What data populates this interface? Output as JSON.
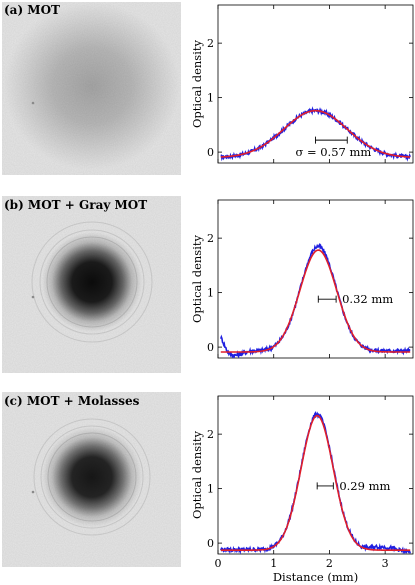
{
  "chart_data": [
    {
      "type": "line",
      "panel_label": "(a) MOT",
      "ylabel": "Optical density",
      "xlabel": "",
      "xlim": [
        0,
        3.5
      ],
      "ylim": [
        -0.2,
        2.7
      ],
      "xticks": [
        0,
        1,
        2,
        3
      ],
      "yticks": [
        0,
        1,
        2
      ],
      "show_xtick_labels": false,
      "image": {
        "peak_intensity": 0.28,
        "sigma_mm": 0.57,
        "cloud": "diffuse"
      },
      "data_params": {
        "amp": 0.86,
        "mu": 1.75,
        "sigma": 0.57,
        "offset": -0.1
      },
      "fit_params": {
        "amp": 0.86,
        "mu": 1.75,
        "sigma": 0.57,
        "offset": -0.1
      },
      "annotation": {
        "text": "σ = 0.57 mm",
        "bar_x": [
          1.75,
          2.32
        ],
        "bar_y": 0.22
      },
      "series": [
        {
          "name": "",
          "style": "data",
          "color": "#1f1fe0",
          "x": [
            0.05,
            0.5,
            1.0,
            1.25,
            1.5,
            1.75,
            2.0,
            2.25,
            2.5,
            3.0,
            3.45
          ],
          "y": [
            -0.1,
            -0.06,
            0.21,
            0.44,
            0.67,
            0.76,
            0.67,
            0.44,
            0.21,
            -0.06,
            -0.1
          ]
        },
        {
          "name": "",
          "style": "fit",
          "color": "#e01f2a",
          "x": [
            0.05,
            0.5,
            1.0,
            1.25,
            1.5,
            1.75,
            2.0,
            2.25,
            2.5,
            3.0,
            3.45
          ],
          "y": [
            -0.1,
            -0.06,
            0.21,
            0.44,
            0.67,
            0.76,
            0.67,
            0.44,
            0.21,
            -0.06,
            -0.1
          ]
        }
      ]
    },
    {
      "type": "line",
      "panel_label": "(b) MOT + Gray MOT",
      "ylabel": "Optical density",
      "xlabel": "",
      "xlim": [
        0,
        3.5
      ],
      "ylim": [
        -0.2,
        2.7
      ],
      "xticks": [
        0,
        1,
        2,
        3
      ],
      "yticks": [
        0,
        1,
        2
      ],
      "show_xtick_labels": false,
      "image": {
        "peak_intensity": 0.95,
        "sigma_mm": 0.32,
        "cloud": "dense"
      },
      "data_params": {
        "amp": 1.92,
        "mu": 1.8,
        "sigma": 0.32,
        "offset": -0.07
      },
      "fit_params": {
        "amp": 1.87,
        "mu": 1.8,
        "sigma": 0.33,
        "offset": -0.09
      },
      "annotation": {
        "text": "0.32 mm",
        "bar_x": [
          1.8,
          2.12
        ],
        "bar_y": 0.88
      },
      "series": [
        {
          "name": "",
          "style": "data",
          "color": "#1f1fe0",
          "x": [
            0.05,
            0.3,
            0.7,
            1.2,
            1.5,
            1.8,
            2.1,
            2.4,
            2.8,
            3.2,
            3.45
          ],
          "y": [
            0.18,
            -0.17,
            -0.07,
            0.12,
            1.06,
            1.85,
            1.06,
            0.12,
            -0.07,
            -0.07,
            -0.07
          ]
        },
        {
          "name": "",
          "style": "fit",
          "color": "#e01f2a",
          "x": [
            0.05,
            0.5,
            1.0,
            1.2,
            1.5,
            1.8,
            2.1,
            2.4,
            2.8,
            3.2,
            3.45
          ],
          "y": [
            -0.09,
            -0.09,
            -0.04,
            0.14,
            1.05,
            1.78,
            1.05,
            0.14,
            -0.08,
            -0.09,
            -0.09
          ]
        }
      ]
    },
    {
      "type": "line",
      "panel_label": "(c) MOT + Molasses",
      "ylabel": "Optical density",
      "xlabel": "Distance (mm)",
      "xlim": [
        0,
        3.5
      ],
      "ylim": [
        -0.2,
        2.7
      ],
      "xticks": [
        0,
        1,
        2,
        3
      ],
      "yticks": [
        0,
        1,
        2
      ],
      "show_xtick_labels": true,
      "image": {
        "peak_intensity": 0.9,
        "sigma_mm": 0.29,
        "cloud": "dense"
      },
      "data_params": {
        "amp": 2.49,
        "mu": 1.78,
        "sigma": 0.29,
        "offset": -0.12,
        "ripple": true
      },
      "fit_params": {
        "amp": 2.47,
        "mu": 1.78,
        "sigma": 0.29,
        "offset": -0.13
      },
      "annotation": {
        "text": "0.29 mm",
        "bar_x": [
          1.78,
          2.07
        ],
        "bar_y": 1.05
      },
      "series": [
        {
          "name": "",
          "style": "data",
          "color": "#1f1fe0",
          "x": [
            0.05,
            0.5,
            1.0,
            1.2,
            1.5,
            1.78,
            2.05,
            2.35,
            2.8,
            3.2,
            3.45
          ],
          "y": [
            -0.12,
            -0.12,
            -0.12,
            0.02,
            1.55,
            2.38,
            1.55,
            0.02,
            -0.02,
            -0.07,
            -0.12
          ]
        },
        {
          "name": "",
          "style": "fit",
          "color": "#e01f2a",
          "x": [
            0.05,
            0.5,
            1.0,
            1.2,
            1.5,
            1.78,
            2.05,
            2.35,
            2.8,
            3.2,
            3.45
          ],
          "y": [
            -0.13,
            -0.13,
            -0.13,
            0.0,
            1.55,
            2.34,
            1.55,
            0.0,
            -0.13,
            -0.13,
            -0.13
          ]
        }
      ]
    }
  ]
}
